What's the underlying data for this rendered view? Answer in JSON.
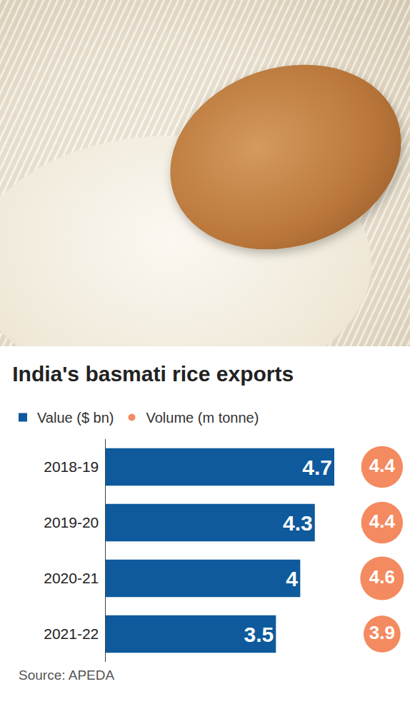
{
  "chart_data": {
    "type": "bar",
    "title": "India's basmati rice exports",
    "source": "Source: APEDA",
    "orientation": "horizontal",
    "categories": [
      "2018-19",
      "2019-20",
      "2020-21",
      "2021-22"
    ],
    "series": [
      {
        "name": "Value ($ bn)",
        "type": "bar",
        "color": "#0e5a9c",
        "values": [
          4.7,
          4.3,
          4,
          3.5
        ]
      },
      {
        "name": "Volume (m tonne)",
        "type": "scatter",
        "marker": "circle",
        "color": "#f0591e",
        "values": [
          4.4,
          4.4,
          4.6,
          3.9
        ]
      }
    ],
    "xlim": [
      0,
      4.7
    ],
    "data_labels": true,
    "tick_labels": "y",
    "legend": "top left",
    "grid": false
  }
}
